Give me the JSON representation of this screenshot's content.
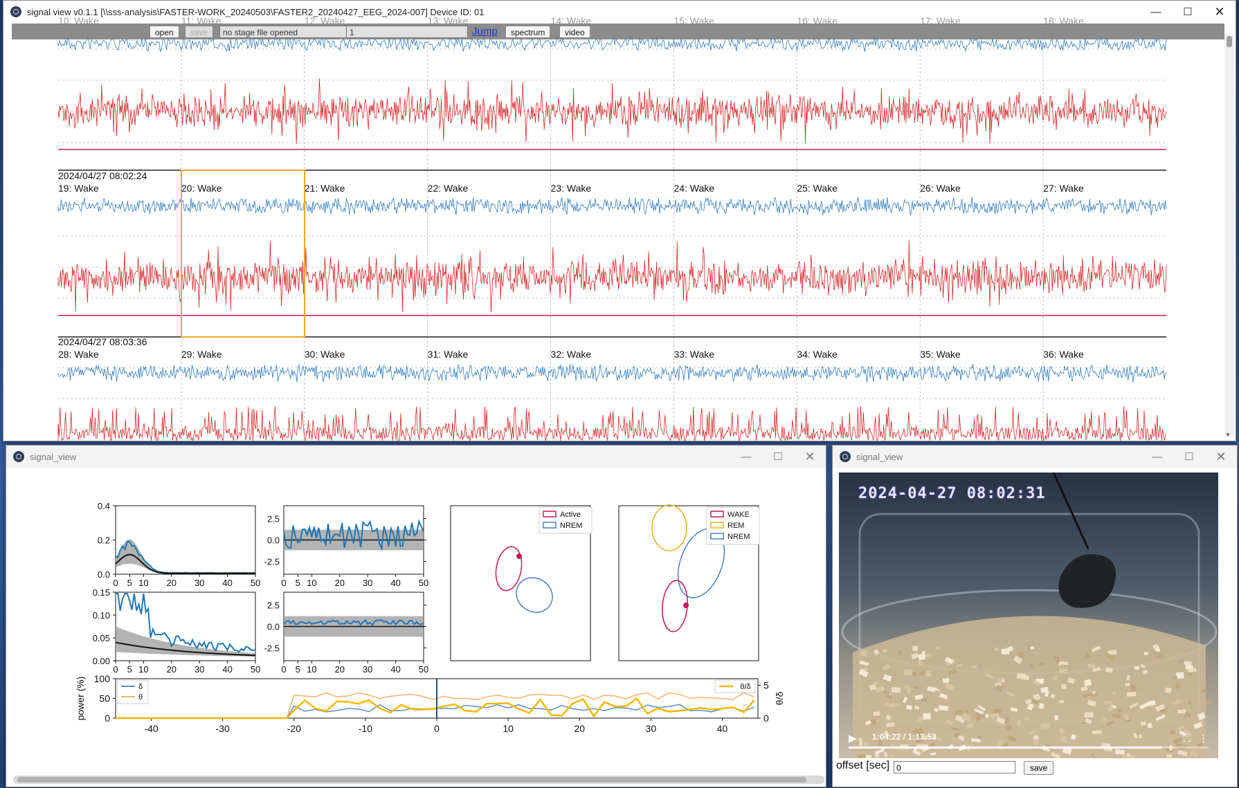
{
  "main_window": {
    "title": "signal view v0.1.1 [\\\\sss-analysis\\FASTER-WORK_20240503\\FASTER2_20240427_EEG_2024-007] Device ID: 01",
    "controls": {
      "minimize": "—",
      "maximize": "☐",
      "close": "✕"
    },
    "toolbar": {
      "open": "open",
      "save": "save",
      "stage_file": "no stage file opened",
      "jump_value": "1",
      "jump": "Jump",
      "spectrum": "spectrum",
      "video": "video"
    },
    "rows": [
      {
        "timestamp": "2024/04/27 08:02:24",
        "epochs": [
          "19: Wake",
          "20: Wake",
          "21: Wake",
          "22: Wake",
          "23: Wake",
          "24: Wake",
          "25: Wake",
          "26: Wake",
          "27: Wake"
        ]
      },
      {
        "timestamp": "2024/04/27 08:03:36",
        "epochs": [
          "28: Wake",
          "29: Wake",
          "30: Wake",
          "31: Wake",
          "32: Wake",
          "33: Wake",
          "34: Wake",
          "35: Wake",
          "36: Wake"
        ]
      }
    ],
    "top_row_epochs_partial": [
      "10: Wake",
      "11: Wake",
      "12: Wake",
      "13: Wake",
      "14: Wake",
      "15: Wake",
      "16: Wake",
      "17: Wake",
      "18: Wake"
    ],
    "colors": {
      "eeg": "#2f7bbd",
      "emg": "#d62728",
      "stage_line": "#c2185b",
      "selection": "#f5a623"
    }
  },
  "spectrum_window": {
    "title": "signal_view",
    "controls": {
      "minimize": "—",
      "maximize": "☐",
      "close": "✕"
    },
    "power_panel_top": {
      "yticks": [
        "0.4",
        "0.2",
        "0.0"
      ],
      "xticks": [
        "0",
        "5",
        "10",
        "20",
        "30",
        "40",
        "50"
      ]
    },
    "power_panel_bottom": {
      "yticks": [
        "0.15",
        "0.10",
        "0.05",
        "0.00"
      ],
      "xticks": [
        "0",
        "5",
        "10",
        "20",
        "30",
        "40",
        "50"
      ]
    },
    "z_panel_top": {
      "yticks": [
        "2.5",
        "0.0",
        "-2.5"
      ],
      "xticks": [
        "0",
        "5",
        "10",
        "20",
        "30",
        "40",
        "50"
      ]
    },
    "z_panel_bottom": {
      "yticks": [
        "2.5",
        "0.0",
        "-2.5"
      ],
      "xticks": [
        "0",
        "5",
        "10",
        "20",
        "30",
        "40",
        "50"
      ]
    },
    "cluster_left_legend": [
      "Active",
      "NREM"
    ],
    "cluster_right_legend": [
      "WAKE",
      "REM",
      "NREM"
    ],
    "timeline": {
      "ylabel": "power (%)",
      "ylabel_right": "θ/δ",
      "yticks": [
        "100",
        "50",
        "0"
      ],
      "yticks_right": [
        "5",
        "0"
      ],
      "xticks": [
        "-40",
        "-30",
        "-20",
        "-10",
        "0",
        "10",
        "20",
        "30",
        "40"
      ],
      "legend_left": [
        "δ",
        "θ"
      ],
      "legend_right": [
        "θ/δ"
      ]
    },
    "colors": {
      "delta": "#5b8ec4",
      "theta": "#f5b26b",
      "ratio": "#f5b800",
      "active": "#c2185b",
      "nrem": "#4a7fc1",
      "rem": "#e5b01f"
    }
  },
  "video_window": {
    "title": "signal_view",
    "controls": {
      "minimize": "—",
      "maximize": "☐",
      "close": "✕"
    },
    "timestamp_overlay": "2024-04-27 08:02:31",
    "time": "1:04:22 / 1:13:53",
    "progress": 0.871,
    "offset_label": "offset [sec]",
    "offset_value": "0",
    "save": "save"
  }
}
